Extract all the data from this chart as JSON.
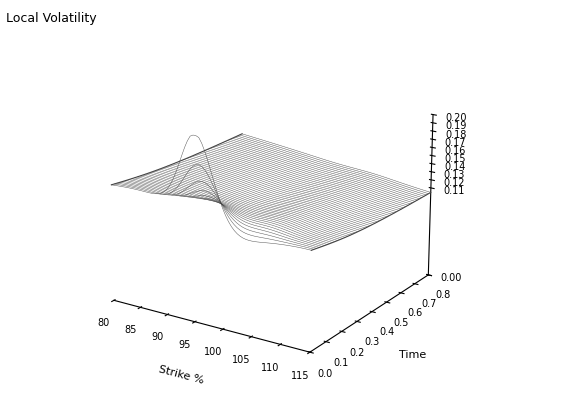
{
  "title": "Local Volatility",
  "xlabel": "Strike %",
  "ylabel": "Time",
  "strike_min": 80,
  "strike_max": 115,
  "time_min": 0.0,
  "time_max": 0.8,
  "vol_min": 0.0,
  "vol_max": 0.2,
  "strike_ticks": [
    80,
    85,
    90,
    95,
    100,
    105,
    110,
    115
  ],
  "time_ticks": [
    0,
    0.1,
    0.2,
    0.3,
    0.4,
    0.5,
    0.6,
    0.7,
    0.8
  ],
  "vol_ticks": [
    0,
    0.11,
    0.12,
    0.13,
    0.14,
    0.15,
    0.16,
    0.17,
    0.18,
    0.19,
    0.2
  ],
  "n_strike": 71,
  "n_time": 50,
  "background_color": "#ffffff",
  "line_color": "#444444",
  "figsize": [
    5.66,
    4.12
  ],
  "dpi": 100
}
